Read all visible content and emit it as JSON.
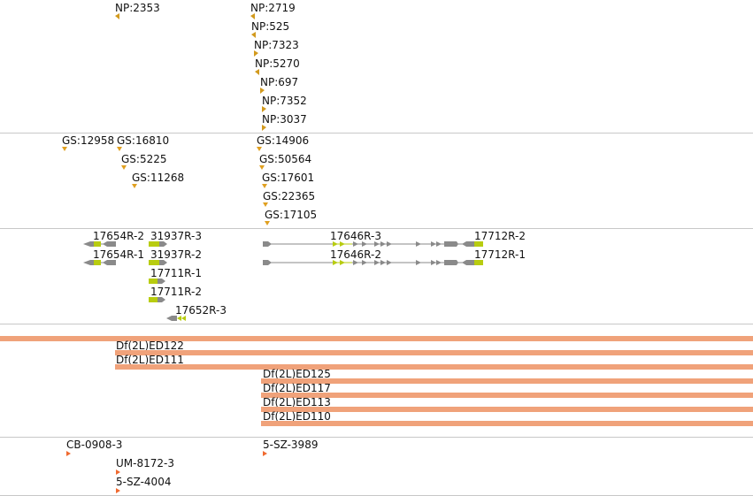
{
  "tracks": {
    "np": {
      "color": "#d29a1e",
      "items": [
        {
          "label": "NP:2353"
        },
        {
          "label": "NP:2719"
        },
        {
          "label": "NP:525"
        },
        {
          "label": "NP:7323"
        },
        {
          "label": "NP:5270"
        },
        {
          "label": "NP:697"
        },
        {
          "label": "NP:7352"
        },
        {
          "label": "NP:3037"
        }
      ]
    },
    "gs": {
      "color": "#e0a020",
      "items": [
        {
          "label": "GS:12958"
        },
        {
          "label": "GS:16810"
        },
        {
          "label": "GS:5225"
        },
        {
          "label": "GS:11268"
        },
        {
          "label": "GS:14906"
        },
        {
          "label": "GS:50564"
        },
        {
          "label": "GS:17601"
        },
        {
          "label": "GS:22365"
        },
        {
          "label": "GS:17105"
        }
      ]
    },
    "transcripts": {
      "intron_color": "#8a8a8a",
      "exon_color": "#8a8a8a",
      "cds_color": "#b8cc10",
      "items": [
        {
          "label": "17654R-2"
        },
        {
          "label": "31937R-3"
        },
        {
          "label": "17654R-1"
        },
        {
          "label": "31937R-2"
        },
        {
          "label": "17711R-1"
        },
        {
          "label": "17711R-2"
        },
        {
          "label": "17652R-3"
        },
        {
          "label": "17646R-3"
        },
        {
          "label": "17712R-2"
        },
        {
          "label": "17646R-2"
        },
        {
          "label": "17712R-1"
        }
      ]
    },
    "deficiencies": {
      "color": "#f0a27a",
      "items": [
        {
          "label": "Df(2L)ED122"
        },
        {
          "label": "Df(2L)ED111"
        },
        {
          "label": "Df(2L)ED125"
        },
        {
          "label": "Df(2L)ED117"
        },
        {
          "label": "Df(2L)ED113"
        },
        {
          "label": "Df(2L)ED110"
        }
      ]
    },
    "insertions": {
      "color": "#f06a30",
      "items": [
        {
          "label": "CB-0908-3"
        },
        {
          "label": "UM-8172-3"
        },
        {
          "label": "5-SZ-4004"
        },
        {
          "label": "5-SZ-3989"
        }
      ]
    }
  }
}
